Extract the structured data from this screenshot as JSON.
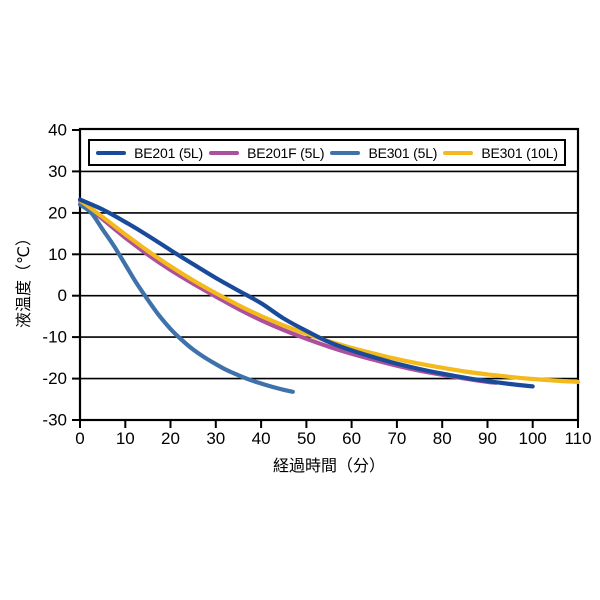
{
  "chart_data": {
    "type": "line",
    "title": "",
    "xlabel": "経過時間（分）",
    "ylabel": "液温度（℃）",
    "xlim": [
      0,
      110
    ],
    "ylim": [
      -30,
      40
    ],
    "xticks": [
      0,
      10,
      20,
      30,
      40,
      50,
      60,
      70,
      80,
      90,
      100,
      110
    ],
    "yticks": [
      40,
      30,
      20,
      10,
      0,
      -10,
      -20,
      -30
    ],
    "grid": "horizontal-only",
    "legend_position": "top-inside",
    "frame_color": "#000000",
    "gridline_color": "#000000",
    "series": [
      {
        "name": "BE201 (5L)",
        "color": "#1a4b9b",
        "x": [
          0,
          5,
          10,
          15,
          20,
          25,
          30,
          35,
          40,
          45,
          50,
          55,
          60,
          65,
          70,
          75,
          80,
          85,
          90,
          95,
          100
        ],
        "y": [
          23.2,
          20.8,
          17.8,
          14.5,
          11,
          7.6,
          4.3,
          1.2,
          -1.8,
          -5.5,
          -8.5,
          -11.2,
          -13.2,
          -14.9,
          -16.4,
          -17.7,
          -18.8,
          -19.8,
          -20.6,
          -21.3,
          -21.9
        ]
      },
      {
        "name": "BE201F (5L)",
        "color": "#ae4f9d",
        "x": [
          0,
          5,
          10,
          15,
          20,
          25,
          30,
          35,
          40,
          45,
          50,
          55,
          60,
          65,
          70,
          75,
          80,
          85,
          90,
          92
        ],
        "y": [
          22.8,
          18.5,
          14,
          9.9,
          6.2,
          2.9,
          -0.2,
          -3.2,
          -5.9,
          -8.3,
          -10.4,
          -12.3,
          -14,
          -15.5,
          -16.9,
          -18.1,
          -19.1,
          -20,
          -20.8,
          -21
        ]
      },
      {
        "name": "BE301 (5L)",
        "color": "#3f72ab",
        "x": [
          0,
          2.5,
          5,
          7.5,
          10,
          12.5,
          15,
          17.5,
          20,
          22.5,
          25,
          27.5,
          30,
          32.5,
          35,
          37.5,
          40,
          42.5,
          45,
          47
        ],
        "y": [
          22,
          20,
          16,
          12,
          7.5,
          3,
          -1,
          -4.8,
          -8,
          -10.7,
          -13,
          -14.9,
          -16.5,
          -18,
          -19.2,
          -20.3,
          -21.2,
          -22,
          -22.7,
          -23.2
        ]
      },
      {
        "name": "BE301 (10L)",
        "color": "#f4ba1c",
        "x": [
          0,
          5,
          10,
          15,
          20,
          25,
          30,
          35,
          40,
          45,
          50,
          55,
          60,
          65,
          70,
          75,
          80,
          85,
          90,
          95,
          100,
          105,
          110
        ],
        "y": [
          23,
          19,
          14.8,
          10.8,
          7.1,
          3.7,
          0.6,
          -2.3,
          -4.9,
          -7.2,
          -9.2,
          -11,
          -12.6,
          -14,
          -15.3,
          -16.4,
          -17.4,
          -18.3,
          -19,
          -19.6,
          -20.1,
          -20.5,
          -20.8
        ]
      }
    ],
    "draw_order": [
      1,
      2,
      3,
      0
    ]
  },
  "legend": {
    "items": [
      {
        "label": "BE201 (5L)"
      },
      {
        "label": "BE201F (5L)"
      },
      {
        "label": "BE301 (5L)"
      },
      {
        "label": "BE301 (10L)"
      }
    ]
  }
}
